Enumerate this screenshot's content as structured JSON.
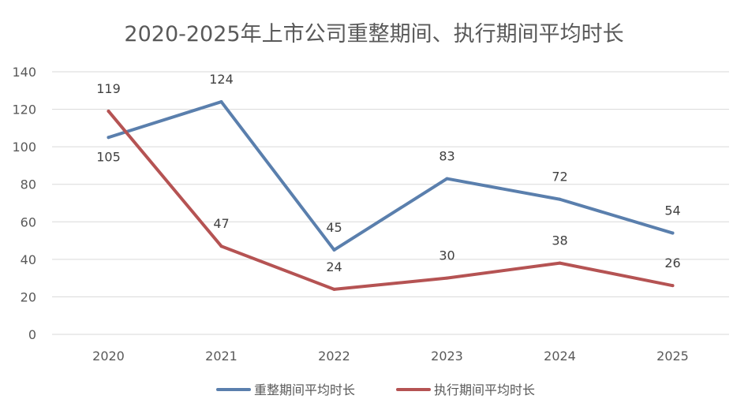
{
  "chart_data": {
    "type": "line",
    "title": "2020-2025年上市公司重整期间、执行期间平均时长",
    "categories": [
      "2020",
      "2021",
      "2022",
      "2023",
      "2024",
      "2025"
    ],
    "series": [
      {
        "name": "重整期间平均时长",
        "values": [
          105,
          124,
          45,
          83,
          72,
          54
        ],
        "color": "#5a7fad"
      },
      {
        "name": "执行期间平均时长",
        "values": [
          119,
          47,
          24,
          30,
          38,
          26
        ],
        "color": "#b55353"
      }
    ],
    "ylim": [
      0,
      140
    ],
    "yticks": [
      0,
      20,
      40,
      60,
      80,
      100,
      120,
      140
    ],
    "grid": true,
    "legend": "bottom",
    "xlabel": "",
    "ylabel": ""
  }
}
